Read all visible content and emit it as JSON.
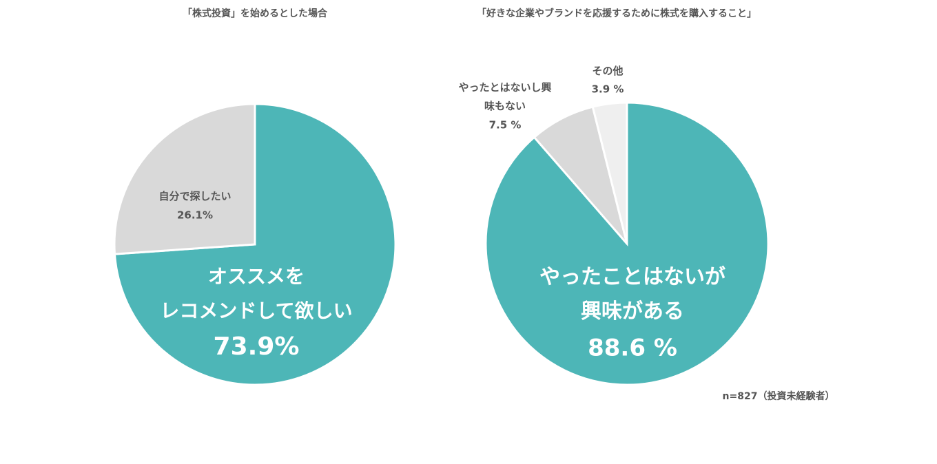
{
  "chart_data": [
    {
      "type": "pie",
      "title": "「株式投資」を始めるとした場合",
      "categories": [
        "オススメを\nレコメンドして欲しい",
        "自分で探したい"
      ],
      "values": [
        73.9,
        26.1
      ],
      "value_labels": [
        "73.9%",
        "26.1%"
      ],
      "colors": [
        "#4db6b7",
        "#d9d9d9"
      ]
    },
    {
      "type": "pie",
      "title": "「好きな企業やブランドを応援するために株式を購入すること」",
      "categories": [
        "やったことはないが\n興味がある",
        "やったとはないし興\n味もない",
        "その他"
      ],
      "values": [
        88.6,
        7.5,
        3.9
      ],
      "value_labels": [
        "88.6 %",
        "7.5 %",
        "3.9 %"
      ],
      "colors": [
        "#4db6b7",
        "#d9d9d9",
        "#efefef"
      ],
      "annotation": "n=827（投資未経験者）"
    }
  ]
}
